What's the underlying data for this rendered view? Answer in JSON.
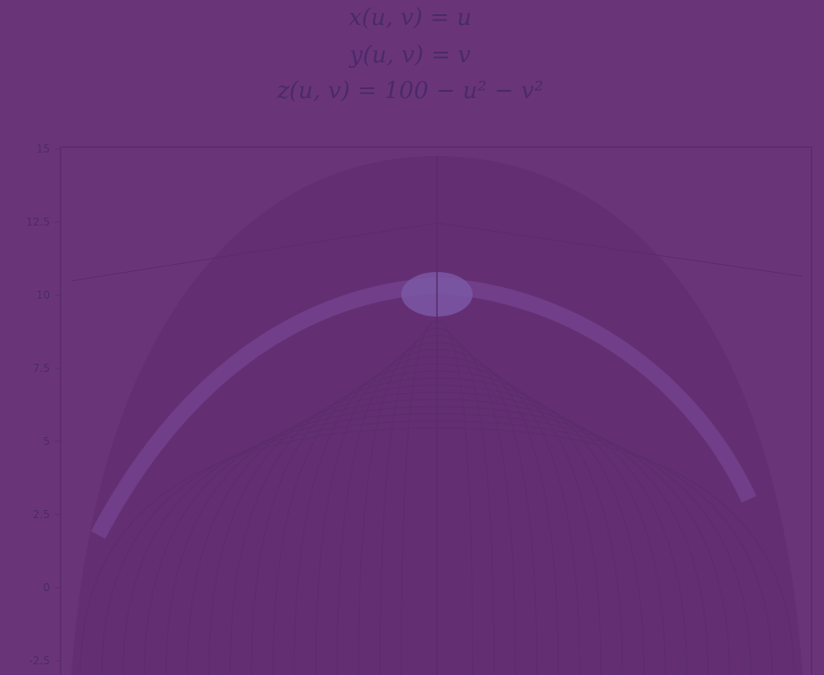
{
  "header": {
    "lines": [
      "x(u, v) = u",
      "y(u, v) = v",
      "z(u, v) = 100 − u² − v²"
    ]
  },
  "axis": {
    "left_ticks": [
      "15",
      "12.5",
      "10",
      "7.5",
      "5",
      "2.5",
      "0",
      "-2.5"
    ]
  }
}
